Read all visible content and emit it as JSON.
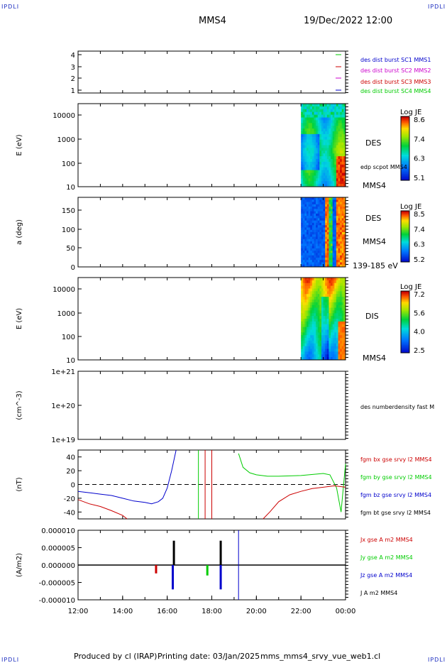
{
  "corner_tag": "IPDLI",
  "header": {
    "spacecraft": "MMS4",
    "datetime": "19/Dec/2022 12:00"
  },
  "footer": {
    "producer": "Produced by cl (IRAP)",
    "printing_date": "Printing date: 03/Jan/2025",
    "file": "mms_mms4_srvy_vue_web1.cl"
  },
  "colors": {
    "blue": "#0000cc",
    "magenta": "#cc00cc",
    "red": "#cc0000",
    "green": "#00cc00",
    "black": "#000000"
  },
  "chart_data": [
    {
      "id": "availability",
      "type": "line",
      "ylabel": "",
      "yticks": [
        "4",
        "3",
        "2",
        "1"
      ],
      "markers": [
        {
          "y": 4,
          "color": "green"
        },
        {
          "y": 3,
          "color": "red"
        },
        {
          "y": 2,
          "color": "magenta"
        },
        {
          "y": 1,
          "color": "blue"
        }
      ],
      "labels": [
        {
          "text": "des dist burst SC1 MMS1",
          "color": "blue"
        },
        {
          "text": "des dist burst SC2 MMS2",
          "color": "magenta"
        },
        {
          "text": "des dist burst SC3 MMS3",
          "color": "red"
        },
        {
          "text": "des dist burst SC4 MMS4",
          "color": "green"
        }
      ]
    },
    {
      "id": "des_energy",
      "type": "heatmap",
      "ylabel": "E (eV)",
      "yscale": "log",
      "ylim": [
        10,
        30000
      ],
      "yticks": [
        "10000",
        "1000",
        "100",
        "10"
      ],
      "data_start_hour": 22.0,
      "instrument": "DES",
      "sub_label": "edp scpot MMS4",
      "sc_label": "MMS4",
      "colorbar": {
        "title": "Log JE",
        "ticks": [
          "8.6",
          "7.4",
          "6.3",
          "5.1"
        ]
      }
    },
    {
      "id": "des_pitch",
      "type": "heatmap",
      "ylabel": "a (deg)",
      "ylim": [
        0,
        185
      ],
      "yticks": [
        "150",
        "100",
        "50",
        "0"
      ],
      "data_start_hour": 22.0,
      "instrument": "DES",
      "sc_label": "MMS4",
      "sub_label": "139-185 eV",
      "colorbar": {
        "title": "Log JE",
        "ticks": [
          "8.5",
          "7.4",
          "6.3",
          "5.2"
        ]
      }
    },
    {
      "id": "dis_energy",
      "type": "heatmap",
      "ylabel": "E (eV)",
      "yscale": "log",
      "ylim": [
        10,
        30000
      ],
      "yticks": [
        "10000",
        "1000",
        "100",
        "10"
      ],
      "data_start_hour": 22.0,
      "instrument": "DIS",
      "sc_label": "MMS4",
      "colorbar": {
        "title": "Log JE",
        "ticks": [
          "7.2",
          "5.6",
          "4.0",
          "2.5"
        ]
      }
    },
    {
      "id": "density",
      "type": "line",
      "ylabel": "(cm^-3)",
      "yscale": "log",
      "ylim": [
        1e+19,
        1e+21
      ],
      "yticks": [
        "1e+21",
        "1e+20",
        "1e+19"
      ],
      "labels": [
        {
          "text": "des numberdensity fast M",
          "color": "black"
        }
      ]
    },
    {
      "id": "fgm",
      "type": "line",
      "ylabel": "(nT)",
      "ylim": [
        -50,
        50
      ],
      "yticks": [
        "40",
        "20",
        "0",
        "-20",
        "-40"
      ],
      "labels": [
        {
          "text": "fgm bx gse srvy l2 MMS4",
          "color": "red"
        },
        {
          "text": "fgm by gse srvy l2 MMS4",
          "color": "green"
        },
        {
          "text": "fgm bz gse srvy l2 MMS4",
          "color": "blue"
        },
        {
          "text": "fgm bt gse srvy l2 MMS4",
          "color": "black"
        }
      ],
      "series": [
        {
          "name": "fgm bz gse srvy l2 MMS4",
          "color": "blue",
          "x": [
            12,
            12.5,
            13,
            13.5,
            14,
            14.5,
            15,
            15.3,
            15.6,
            15.8,
            16,
            16.2,
            16.4
          ],
          "y": [
            -10,
            -12,
            -14,
            -16,
            -20,
            -24,
            -26,
            -28,
            -25,
            -20,
            -5,
            20,
            50
          ]
        },
        {
          "name": "fgm bx gse srvy l2 MMS4",
          "color": "red",
          "x": [
            12,
            12.5,
            13,
            13.5,
            14,
            14.2
          ],
          "y": [
            -22,
            -28,
            -32,
            -38,
            -45,
            -50
          ]
        },
        {
          "name": "fgm by gse srvy l2 MMS4",
          "color": "green",
          "x": [
            19.2,
            19.4,
            19.7,
            20,
            20.5,
            21,
            22,
            23,
            23.3,
            23.6,
            23.8,
            24
          ],
          "y": [
            45,
            25,
            17,
            14,
            12,
            12,
            13,
            16,
            14,
            -5,
            -40,
            30
          ]
        },
        {
          "name": "fgm bx gse srvy l2 MMS4",
          "color": "red",
          "x": [
            20.3,
            20.6,
            21,
            21.5,
            22,
            22.5,
            23,
            23.5,
            24
          ],
          "y": [
            -50,
            -40,
            -25,
            -15,
            -10,
            -6,
            -4,
            -2,
            -4
          ]
        }
      ]
    },
    {
      "id": "current",
      "type": "line",
      "ylabel": "(A/m2)",
      "ylim": [
        -1e-05,
        1e-05
      ],
      "yticks": [
        "0.000010",
        "0.000005",
        "0.000000",
        "-0.000005",
        "-0.000010"
      ],
      "xticks": [
        "12:00",
        "14:00",
        "16:00",
        "18:00",
        "20:00",
        "22:00",
        "00:00"
      ],
      "xlim_hours": [
        12,
        24
      ],
      "labels": [
        {
          "text": "Jx gse A m2 MMS4",
          "color": "red"
        },
        {
          "text": "Jy gse A m2 MMS4",
          "color": "green"
        },
        {
          "text": "Jz gse A m2 MMS4",
          "color": "blue"
        },
        {
          "text": "J A m2 MMS4",
          "color": "black"
        }
      ]
    }
  ]
}
